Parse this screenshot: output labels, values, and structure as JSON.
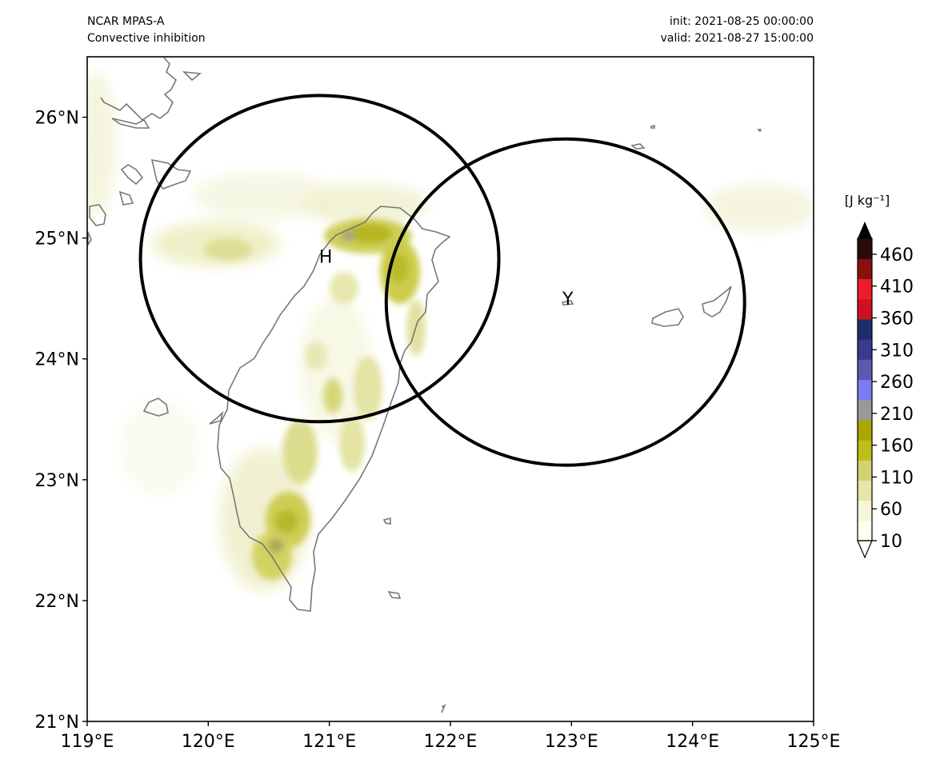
{
  "header": {
    "model": "NCAR MPAS-A",
    "field": "Convective inhibition",
    "init": "init: 2021-08-25 00:00:00",
    "valid": "valid: 2021-08-27 15:00:00"
  },
  "map": {
    "lon_range": [
      119,
      125
    ],
    "lat_range": [
      21,
      26.5
    ],
    "x_ticks": [
      "119°E",
      "120°E",
      "121°E",
      "122°E",
      "123°E",
      "124°E",
      "125°E"
    ],
    "y_ticks": [
      "21°N",
      "22°N",
      "23°N",
      "24°N",
      "25°N",
      "26°N"
    ],
    "markers": [
      {
        "label": "H",
        "lon": 120.97,
        "lat": 24.85
      },
      {
        "label": "Y",
        "lon": 122.97,
        "lat": 24.5
      }
    ],
    "circles": [
      {
        "center_lon": 120.92,
        "center_lat": 24.83,
        "radius_deg_lon": 1.48,
        "radius_deg_lat": 1.35
      },
      {
        "center_lon": 122.95,
        "center_lat": 24.47,
        "radius_deg_lon": 1.48,
        "radius_deg_lat": 1.35
      }
    ]
  },
  "colorbar": {
    "unit_label": "[J kg⁻¹]",
    "ticks": [
      "10",
      "60",
      "110",
      "160",
      "210",
      "260",
      "310",
      "360",
      "410",
      "460"
    ],
    "colors": [
      "#fffff0",
      "#f6f6d8",
      "#e6e6a8",
      "#d2d270",
      "#bdbd1c",
      "#a8a800",
      "#999999",
      "#7b7bf0",
      "#5a5ab0",
      "#3a3a90",
      "#1c2e6a",
      "#d01020",
      "#ee1c2a",
      "#8a1010",
      "#2a0a0a"
    ]
  }
}
